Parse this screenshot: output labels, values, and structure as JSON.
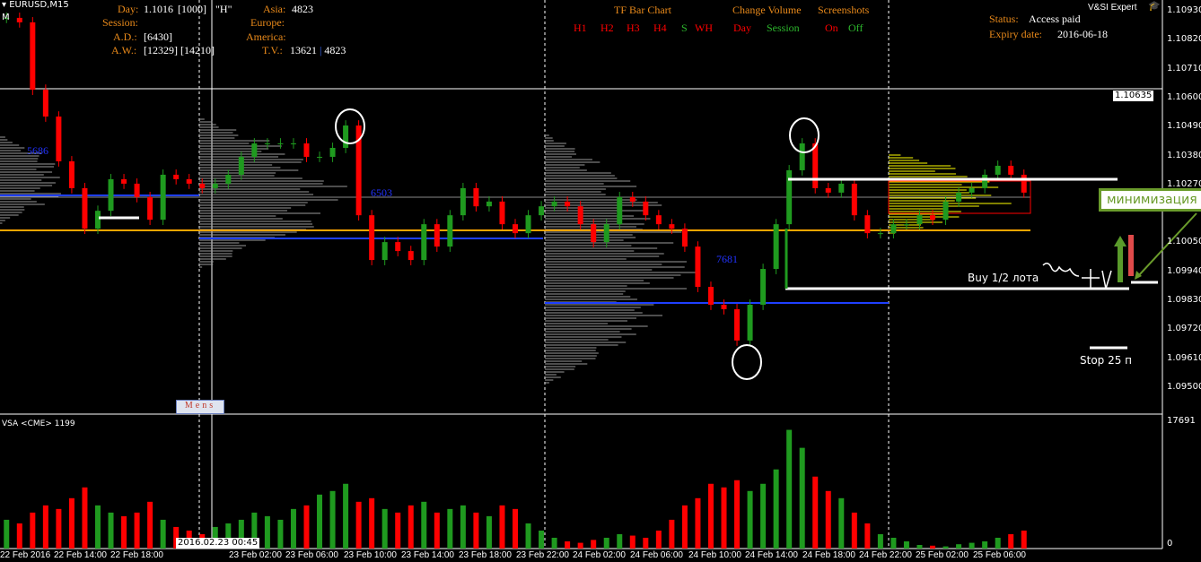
{
  "header": {
    "symbol": "EURUSD,M15",
    "mode": "M"
  },
  "info": {
    "day_label": "Day:",
    "day_value": "1.1016",
    "day_bracket": "[1000]",
    "h_label": "\"H\"",
    "session_label": "Session:",
    "ad_label": "A.D.:",
    "ad_value": "[6430]",
    "aw_label": "A.W.:",
    "aw_value": "[12329] [14210]",
    "asia_label": "Asia:",
    "asia_value": "4823",
    "europe_label": "Europe:",
    "america_label": "America:",
    "tv_label": "T.V.:",
    "tv_value": "13621",
    "tv_sep": "|",
    "tv_value2": "4823"
  },
  "tf": {
    "title": "TF Bar Chart",
    "items": [
      "H1",
      "H2",
      "H3",
      "H4",
      "S",
      "WH"
    ]
  },
  "volume_change": {
    "title": "Change Volume",
    "day": "Day",
    "session": "Session"
  },
  "screenshots": {
    "title": "Screenshots",
    "on": "On",
    "off": "Off"
  },
  "expert": {
    "name": "V&SI Expert",
    "status_label": "Status:",
    "status_value": "Access paid",
    "expiry_label": "Expiry date:",
    "expiry_value": "2016-06-18"
  },
  "labels": {
    "profile1": "5686",
    "profile2": "6503",
    "profile3": "7681",
    "mens": "Mens",
    "buy": "Buy 1/2 лота",
    "stop": "Stop 25 п",
    "callout": "минимизация",
    "vsa": "VSA <CME> 1199",
    "cursor_time": "2016.02.23 00:45",
    "current_price": "1.10635"
  },
  "colors": {
    "bull": "#1f9a1f",
    "bear": "#ff0000",
    "orange": "#ffa500",
    "blue": "#1f3fff",
    "profile": "#9a9a9a",
    "yellow": "#ffff00",
    "callout": "#6a9b2b"
  },
  "chart_data": {
    "type": "candlestick",
    "price_axis": {
      "ticks": [
        "1.10930",
        "1.10820",
        "1.10710",
        "1.10600",
        "1.10490",
        "1.10380",
        "1.10270",
        "1.10050",
        "1.09940",
        "1.09830",
        "1.09720",
        "1.09610",
        "1.09500"
      ],
      "range": [
        1.0942,
        1.1097
      ]
    },
    "volume_axis": {
      "ticks": [
        "17691",
        "0"
      ],
      "range": [
        0,
        17691
      ]
    },
    "time_ticks": [
      "22 Feb 2016",
      "22 Feb 14:00",
      "22 Feb 18:00",
      "23 Feb 02:00",
      "23 Feb 06:00",
      "23 Feb 10:00",
      "23 Feb 14:00",
      "23 Feb 18:00",
      "23 Feb 22:00",
      "24 Feb 02:00",
      "24 Feb 06:00",
      "24 Feb 10:00",
      "24 Feb 14:00",
      "24 Feb 18:00",
      "24 Feb 22:00",
      "25 Feb 02:00",
      "25 Feb 06:00"
    ],
    "closes": [
      1.10903,
      1.10886,
      1.1063,
      1.10528,
      1.10358,
      1.10256,
      1.10102,
      1.1017,
      1.1029,
      1.10273,
      1.10222,
      1.10136,
      1.10307,
      1.1029,
      1.10273,
      1.10256,
      1.10273,
      1.10307,
      1.10375,
      1.10426,
      1.10426,
      1.10426,
      1.10426,
      1.10375,
      1.10375,
      1.10409,
      1.10494,
      1.10153,
      1.09983,
      1.10051,
      1.10017,
      1.09983,
      1.10119,
      1.10034,
      1.10153,
      1.10256,
      1.10187,
      1.10205,
      1.10119,
      1.10085,
      1.10153,
      1.10187,
      1.10205,
      1.10187,
      1.10119,
      1.10051,
      1.10119,
      1.10222,
      1.10205,
      1.10153,
      1.10119,
      1.10102,
      1.10034,
      1.09881,
      1.09813,
      1.09796,
      1.09677,
      1.09813,
      1.09949,
      1.10119,
      1.10324,
      1.10426,
      1.10256,
      1.10239,
      1.10273,
      1.10153,
      1.10085,
      1.10085,
      1.10119,
      1.10119,
      1.10153,
      1.10136,
      1.10205,
      1.10239,
      1.10256,
      1.10307,
      1.10341,
      1.10307,
      1.10239
    ],
    "volumes": [
      4000,
      3500,
      5000,
      6000,
      5500,
      7000,
      8500,
      6000,
      5000,
      4500,
      5000,
      6500,
      4000,
      3000,
      2500,
      2000,
      3000,
      3500,
      4000,
      5000,
      4500,
      4000,
      5500,
      6000,
      7500,
      8000,
      9000,
      6500,
      7000,
      5500,
      5000,
      6000,
      6500,
      5000,
      5500,
      6000,
      5000,
      4500,
      6000,
      5500,
      3500,
      2500,
      1500,
      1000,
      800,
      1200,
      1500,
      2000,
      1800,
      1500,
      2500,
      4000,
      6000,
      7000,
      9000,
      8500,
      9500,
      8000,
      9000,
      11000,
      16500,
      14000,
      10000,
      8000,
      7000,
      5000,
      3500,
      2000,
      1500,
      1000,
      500,
      400,
      300,
      600,
      800,
      1000,
      1500,
      2000,
      2500
    ],
    "levels": [
      {
        "price": 1.10635,
        "color": "#ffffff"
      },
      {
        "price": 1.1008,
        "color": "#ffa500"
      }
    ]
  }
}
